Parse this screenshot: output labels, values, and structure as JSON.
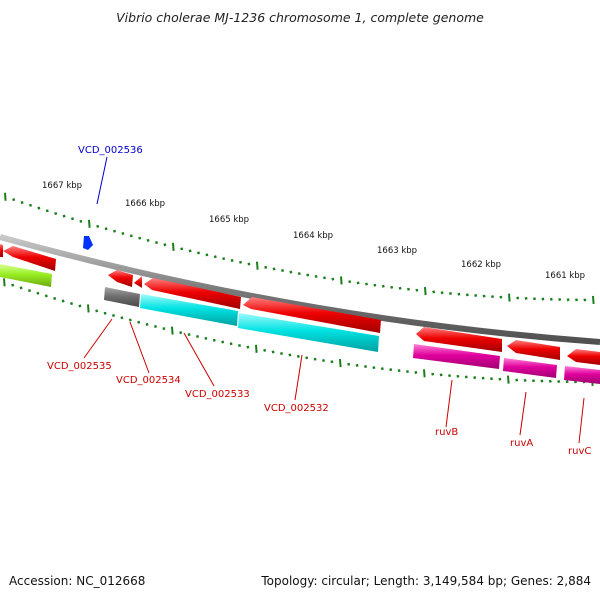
{
  "title": "Vibrio cholerae MJ-1236 chromosome 1, complete genome",
  "accession": "Accession: NC_012668",
  "topology": "Topology: circular; Length: 3,149,584 bp; Genes: 2,884",
  "colors": {
    "backbone": "#8c8c8c",
    "tick": "#1a7f1a",
    "label_blue": "#0000cc",
    "label_red": "#cc0000",
    "red_gene": "#ee0000",
    "cyan_gene": "#00e5e5",
    "magenta_gene": "#e2009f",
    "grey_gene": "#707070",
    "lime_gene": "#99ee22",
    "blue_marker": "#0033ff"
  },
  "scale_labels": [
    {
      "id": "1667",
      "text": "1667 kbp"
    },
    {
      "id": "1666",
      "text": "1666 kbp"
    },
    {
      "id": "1665",
      "text": "1665 kbp"
    },
    {
      "id": "1664",
      "text": "1664 kbp"
    },
    {
      "id": "1663",
      "text": "1663 kbp"
    },
    {
      "id": "1662",
      "text": "1662 kbp"
    },
    {
      "id": "1661",
      "text": "1661 kbp"
    }
  ],
  "gene_labels": [
    {
      "id": "vcd_002536",
      "text": "VCD_002536",
      "color": "blue"
    },
    {
      "id": "vcd_002535",
      "text": "VCD_002535",
      "color": "red"
    },
    {
      "id": "vcd_002534",
      "text": "VCD_002534",
      "color": "red"
    },
    {
      "id": "vcd_002533",
      "text": "VCD_002533",
      "color": "red"
    },
    {
      "id": "vcd_002532",
      "text": "VCD_002532",
      "color": "red"
    },
    {
      "id": "ruvb",
      "text": "ruvB",
      "color": "red"
    },
    {
      "id": "ruva",
      "text": "ruvA",
      "color": "red"
    },
    {
      "id": "ruvc",
      "text": "ruvC",
      "color": "red"
    }
  ]
}
